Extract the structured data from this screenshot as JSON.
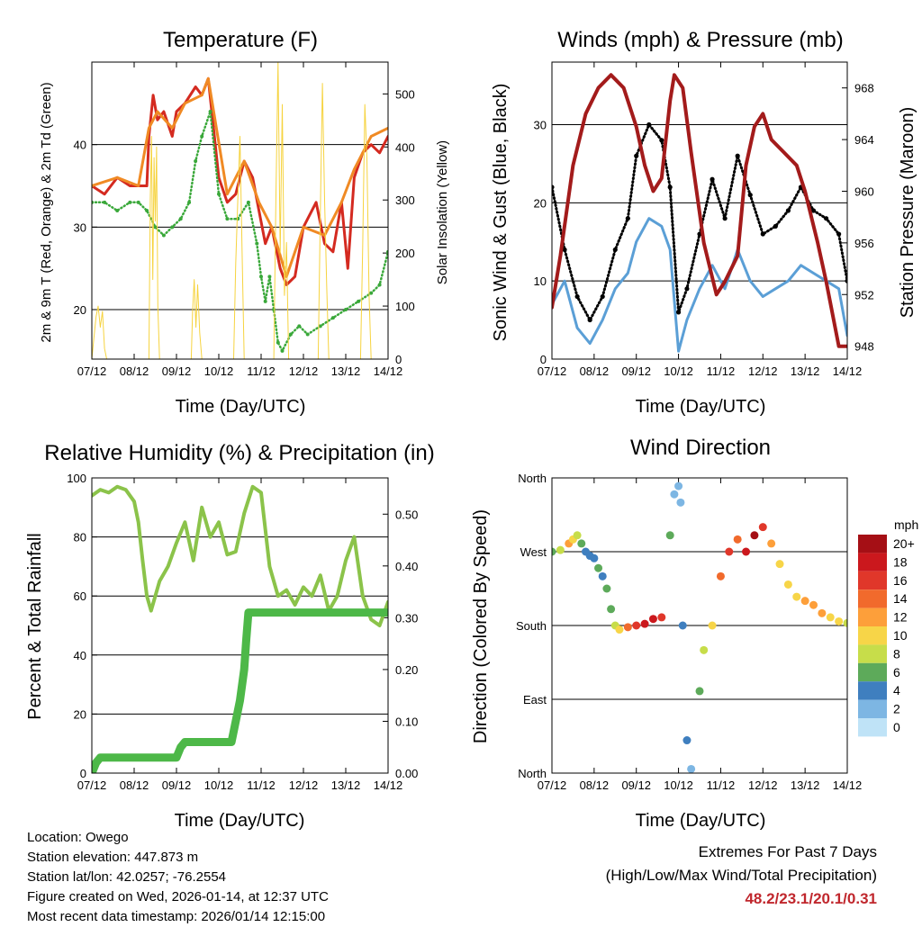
{
  "xticks": [
    "07/12",
    "08/12",
    "09/12",
    "10/12",
    "11/12",
    "12/12",
    "13/12",
    "14/12"
  ],
  "xlabel": "Time (Day/UTC)",
  "panels": {
    "temperature": {
      "title": "Temperature (F)",
      "ylabel_left": "2m & 9m T (Red, Orange) & 2m Td (Green)",
      "ylabel_right": "Solar Insolation (Yellow)",
      "yticks_left": [
        "20",
        "30",
        "40"
      ],
      "yticks_right": [
        "0",
        "100",
        "200",
        "300",
        "400",
        "500"
      ]
    },
    "winds": {
      "title": "Winds (mph) & Pressure (mb)",
      "ylabel_left": "Sonic Wind & Gust (Blue, Black)",
      "ylabel_right": "Station Pressure (Maroon)",
      "yticks_left": [
        "0",
        "10",
        "20",
        "30"
      ],
      "yticks_right": [
        "948",
        "952",
        "956",
        "960",
        "964",
        "968"
      ]
    },
    "humidity": {
      "title": "Relative Humidity (%) & Precipitation (in)",
      "ylabel_left": "Percent & Total Rainfall",
      "yticks_left": [
        "0",
        "20",
        "40",
        "60",
        "80",
        "100"
      ],
      "yticks_right": [
        "0.00",
        "0.10",
        "0.20",
        "0.30",
        "0.40",
        "0.50"
      ]
    },
    "direction": {
      "title": "Wind Direction",
      "ylabel_left": "Direction (Colored By Speed)",
      "yticks_left": [
        "North",
        "East",
        "South",
        "West",
        "North"
      ],
      "legend_title": "mph",
      "legend_labels": [
        "20+",
        "18",
        "16",
        "14",
        "12",
        "10",
        "8",
        "6",
        "4",
        "2",
        "0"
      ],
      "legend_colors": [
        "#a50f15",
        "#cb181d",
        "#e0372a",
        "#f16a2c",
        "#fd9f3a",
        "#f7d548",
        "#c7dd4a",
        "#5daa5a",
        "#3f7fbf",
        "#7db6e3",
        "#bfe3f7"
      ]
    }
  },
  "chart_data": [
    {
      "type": "line",
      "title": "Temperature (F)",
      "xlabel": "Time (Day/UTC)",
      "ylabel": "2m & 9m T (Red, Orange) & 2m Td (Green)",
      "ylim": [
        14,
        50
      ],
      "y2label": "Solar Insolation (Yellow)",
      "y2lim": [
        0,
        560
      ],
      "series": [
        {
          "name": "2m T",
          "color": "#d42a20",
          "x": [
            0,
            0.3,
            0.6,
            0.9,
            1.1,
            1.3,
            1.35,
            1.45,
            1.55,
            1.7,
            1.9,
            2.0,
            2.2,
            2.45,
            2.6,
            2.75,
            3.0,
            3.2,
            3.4,
            3.6,
            3.8,
            3.95,
            4.1,
            4.25,
            4.45,
            4.6,
            4.8,
            5.0,
            5.3,
            5.5,
            5.7,
            5.9,
            6.05,
            6.2,
            6.4,
            6.6,
            6.8,
            7.0
          ],
          "y": [
            35,
            34,
            36,
            35,
            35,
            35,
            41,
            46,
            43,
            44,
            41,
            44,
            45,
            47,
            46,
            48,
            36,
            33,
            34,
            38,
            36,
            32,
            28,
            30,
            25,
            23,
            24,
            30,
            33,
            28,
            27,
            33,
            25,
            36,
            39,
            40,
            39,
            41
          ]
        },
        {
          "name": "9m T",
          "color": "#f08a24",
          "x": [
            0,
            0.6,
            1.1,
            1.35,
            1.55,
            1.9,
            2.2,
            2.6,
            2.75,
            3.2,
            3.6,
            3.95,
            4.25,
            4.6,
            5.0,
            5.5,
            5.9,
            6.2,
            6.6,
            7.0
          ],
          "y": [
            35,
            36,
            35,
            42,
            44,
            42,
            45,
            46,
            48,
            34,
            38,
            33,
            30,
            24,
            30,
            29,
            33,
            37,
            41,
            42
          ]
        },
        {
          "name": "2m Td",
          "color": "#3aa83a",
          "x": [
            0,
            0.3,
            0.6,
            0.9,
            1.1,
            1.3,
            1.5,
            1.7,
            1.9,
            2.1,
            2.3,
            2.45,
            2.6,
            2.8,
            3.0,
            3.2,
            3.45,
            3.7,
            3.9,
            4.0,
            4.1,
            4.2,
            4.3,
            4.4,
            4.5,
            4.7,
            4.9,
            5.1,
            5.4,
            5.7,
            6.0,
            6.3,
            6.6,
            6.8,
            7.0
          ],
          "y": [
            33,
            33,
            32,
            33,
            33,
            32,
            30,
            29,
            30,
            31,
            33,
            38,
            41,
            44,
            34,
            31,
            31,
            33,
            28,
            24,
            21,
            24,
            20,
            16,
            15,
            17,
            18,
            17,
            18,
            19,
            20,
            21,
            22,
            23,
            27
          ]
        },
        {
          "name": "Solar Insolation",
          "axis": "right",
          "color": "#f6d33f",
          "x": [
            0,
            0.05,
            0.1,
            0.15,
            0.2,
            0.25,
            0.3,
            0.35,
            1.35,
            1.38,
            1.41,
            1.44,
            1.47,
            1.5,
            1.53,
            1.56,
            1.6,
            2.35,
            2.38,
            2.42,
            2.46,
            2.5,
            2.55,
            2.6,
            3.35,
            3.4,
            3.45,
            3.5,
            3.55,
            3.6,
            4.3,
            4.35,
            4.4,
            4.45,
            4.5,
            4.55,
            4.6,
            4.65,
            5.35,
            5.4,
            5.45,
            5.5,
            5.55,
            5.6,
            6.35,
            6.4,
            6.45,
            6.5,
            6.55,
            6.6,
            7.0
          ],
          "y": [
            0,
            40,
            80,
            100,
            60,
            90,
            20,
            0,
            0,
            300,
            420,
            150,
            380,
            260,
            400,
            100,
            0,
            0,
            90,
            150,
            60,
            140,
            50,
            0,
            0,
            180,
            300,
            420,
            200,
            0,
            0,
            300,
            560,
            200,
            480,
            120,
            220,
            0,
            0,
            280,
            520,
            300,
            140,
            0,
            0,
            210,
            480,
            380,
            120,
            0,
            0
          ]
        }
      ]
    },
    {
      "type": "line",
      "title": "Winds (mph) & Pressure (mb)",
      "xlabel": "Time (Day/UTC)",
      "ylabel": "Sonic Wind & Gust (Blue, Black)",
      "ylim": [
        0,
        38
      ],
      "y2label": "Station Pressure (Maroon)",
      "y2lim": [
        947,
        970
      ],
      "series": [
        {
          "name": "Sonic Wind",
          "color": "#5b9fd6",
          "x": [
            0,
            0.3,
            0.6,
            0.9,
            1.2,
            1.5,
            1.8,
            2.0,
            2.3,
            2.6,
            2.8,
            3.0,
            3.2,
            3.5,
            3.8,
            4.1,
            4.4,
            4.7,
            5.0,
            5.3,
            5.6,
            5.9,
            6.2,
            6.5,
            6.8,
            7.0
          ],
          "y": [
            7,
            10,
            4,
            2,
            5,
            9,
            11,
            15,
            18,
            17,
            14,
            1,
            5,
            9,
            12,
            9,
            14,
            10,
            8,
            9,
            10,
            12,
            11,
            10,
            9,
            3
          ]
        },
        {
          "name": "Gust",
          "color": "#000000",
          "x": [
            0,
            0.3,
            0.6,
            0.9,
            1.2,
            1.5,
            1.8,
            2.0,
            2.3,
            2.6,
            2.8,
            3.0,
            3.2,
            3.5,
            3.8,
            4.1,
            4.4,
            4.7,
            5.0,
            5.3,
            5.6,
            5.9,
            6.2,
            6.5,
            6.8,
            7.0
          ],
          "y": [
            22,
            14,
            8,
            5,
            8,
            14,
            18,
            26,
            30,
            28,
            22,
            6,
            9,
            16,
            23,
            18,
            26,
            21,
            16,
            17,
            19,
            22,
            19,
            18,
            16,
            10
          ]
        },
        {
          "name": "Station Pressure",
          "axis": "right",
          "color": "#a31b1b",
          "x": [
            0,
            0.2,
            0.5,
            0.8,
            1.1,
            1.4,
            1.7,
            2.0,
            2.2,
            2.4,
            2.6,
            2.8,
            2.9,
            3.1,
            3.3,
            3.6,
            3.9,
            4.1,
            4.4,
            4.6,
            4.8,
            5.0,
            5.2,
            5.5,
            5.8,
            6.0,
            6.3,
            6.5,
            6.8,
            7.0
          ],
          "y": [
            951,
            955,
            962,
            966,
            968,
            969,
            968,
            965,
            962,
            960,
            961,
            967,
            969,
            968,
            963,
            956,
            952,
            953,
            955,
            962,
            965,
            966,
            964,
            963,
            962,
            960,
            956,
            953,
            948,
            948
          ]
        }
      ]
    },
    {
      "type": "line",
      "title": "Relative Humidity (%) & Precipitation (in)",
      "xlabel": "Time (Day/UTC)",
      "ylabel": "Percent & Total Rainfall",
      "ylim": [
        0,
        100
      ],
      "y2lim": [
        0,
        0.57
      ],
      "series": [
        {
          "name": "Relative Humidity",
          "color": "#8bc34a",
          "x": [
            0,
            0.2,
            0.4,
            0.6,
            0.8,
            1.0,
            1.1,
            1.2,
            1.3,
            1.4,
            1.6,
            1.8,
            2.0,
            2.2,
            2.4,
            2.6,
            2.8,
            3.0,
            3.2,
            3.4,
            3.6,
            3.8,
            4.0,
            4.2,
            4.4,
            4.6,
            4.8,
            5.0,
            5.2,
            5.4,
            5.6,
            5.8,
            6.0,
            6.2,
            6.4,
            6.6,
            6.8,
            7.0
          ],
          "y": [
            94,
            96,
            95,
            97,
            96,
            92,
            85,
            72,
            60,
            55,
            65,
            70,
            78,
            85,
            72,
            90,
            80,
            85,
            74,
            75,
            88,
            97,
            95,
            70,
            60,
            62,
            57,
            63,
            60,
            67,
            55,
            60,
            72,
            80,
            60,
            52,
            50,
            58
          ]
        },
        {
          "name": "Total Rainfall",
          "axis": "right",
          "color": "#4db848",
          "x": [
            0,
            0.1,
            0.2,
            1.0,
            2.0,
            2.1,
            2.2,
            3.0,
            3.3,
            3.4,
            3.5,
            3.6,
            3.65,
            3.7,
            4.0,
            5.0,
            6.0,
            7.0
          ],
          "y": [
            0,
            0.02,
            0.03,
            0.03,
            0.03,
            0.05,
            0.06,
            0.06,
            0.06,
            0.1,
            0.14,
            0.2,
            0.26,
            0.31,
            0.31,
            0.31,
            0.31,
            0.31
          ]
        }
      ]
    },
    {
      "type": "scatter",
      "title": "Wind Direction",
      "xlabel": "Time (Day/UTC)",
      "ylabel": "Direction (Colored By Speed)",
      "ylim": [
        0,
        360
      ],
      "colorbar": "mph",
      "series": [
        {
          "name": "Direction",
          "x": [
            0,
            0.2,
            0.4,
            0.5,
            0.6,
            0.7,
            0.8,
            0.9,
            1.0,
            1.1,
            1.2,
            1.3,
            1.4,
            1.5,
            1.6,
            1.8,
            2.0,
            2.2,
            2.4,
            2.6,
            2.8,
            2.9,
            3.0,
            3.05,
            3.1,
            3.2,
            3.3,
            3.5,
            3.6,
            3.8,
            4.0,
            4.2,
            4.4,
            4.6,
            4.8,
            5.0,
            5.2,
            5.4,
            5.6,
            5.8,
            6.0,
            6.2,
            6.4,
            6.6,
            6.8,
            7.0
          ],
          "y": [
            270,
            272,
            280,
            285,
            290,
            280,
            270,
            265,
            262,
            250,
            240,
            225,
            200,
            180,
            175,
            178,
            180,
            182,
            188,
            190,
            290,
            340,
            350,
            330,
            180,
            40,
            5,
            100,
            150,
            180,
            240,
            270,
            285,
            270,
            290,
            300,
            280,
            255,
            230,
            215,
            210,
            205,
            195,
            190,
            185,
            183
          ],
          "speed": [
            6,
            8,
            12,
            10,
            8,
            6,
            4,
            3,
            4,
            6,
            4,
            5,
            6,
            8,
            10,
            14,
            16,
            18,
            18,
            16,
            6,
            2,
            1,
            2,
            4,
            3,
            2,
            6,
            8,
            10,
            14,
            16,
            14,
            18,
            20,
            16,
            12,
            10,
            9,
            10,
            11,
            12,
            12,
            10,
            9,
            8
          ]
        }
      ]
    }
  ],
  "info": {
    "location": "Location: Owego",
    "elevation": "Station elevation: 447.873 m",
    "latlon": "Station lat/lon: 42.0257; -76.2554",
    "created": "Figure created on Wed, 2026-01-14, at 12:37 UTC",
    "recent": "Most recent data timestamp: 2026/01/14 12:15:00"
  },
  "extremes": {
    "line1": "Extremes For Past 7 Days",
    "line2": "(High/Low/Max Wind/Total Precipitation)",
    "values": "48.2/23.1/20.1/0.31"
  }
}
